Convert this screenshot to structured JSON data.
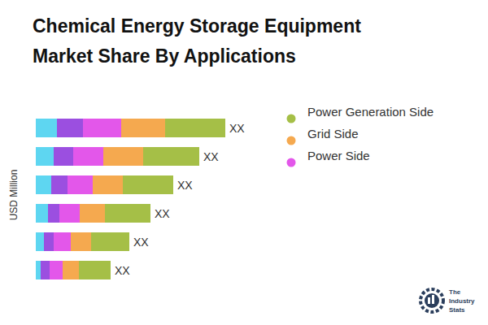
{
  "chart_data": {
    "type": "bar",
    "title": "Chemical Energy Storage Equipment Market Share By Applications",
    "y_label": "USD Million",
    "orientation": "horizontal",
    "stacked": true,
    "tick_labels": false,
    "grid": false,
    "legend": "right",
    "categories": [
      null,
      null,
      null,
      null,
      null,
      null
    ],
    "xlim": [
      0,
      260
    ],
    "series": [
      {
        "name": null,
        "color": "#5ed6f1",
        "values": [
          26,
          22,
          19,
          15,
          10,
          6
        ]
      },
      {
        "name": null,
        "color": "#9b4fe0",
        "values": [
          32,
          24,
          20,
          14,
          12,
          11
        ]
      },
      {
        "name": "Power Side",
        "color": "#e357ea",
        "values": [
          47,
          37,
          31,
          25,
          21,
          16
        ]
      },
      {
        "name": "Grid Side",
        "color": "#f5a94f",
        "values": [
          54,
          49,
          37,
          31,
          25,
          20
        ]
      },
      {
        "name": "Power Generation Side",
        "color": "#a5bf47",
        "values": [
          74,
          69,
          62,
          56,
          47,
          39
        ]
      }
    ],
    "annotations": [
      "XX",
      "XX",
      "XX",
      "XX",
      "XX",
      "XX"
    ],
    "logo": "The Industry Stats"
  }
}
